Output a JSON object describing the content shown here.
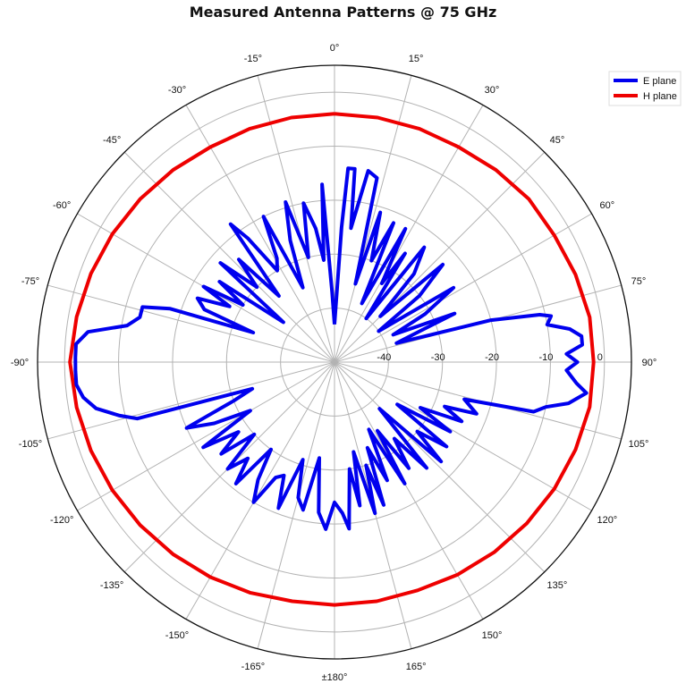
{
  "chart_data": {
    "type": "polar-line",
    "title": "Measured Antenna Patterns @ 75 GHz",
    "radial_axis": {
      "range": [
        -50,
        5
      ],
      "ticks": [
        -40,
        -30,
        -20,
        -10,
        0
      ],
      "tick_labels": [
        "-40",
        "-30",
        "-20",
        "-10",
        "0"
      ],
      "label_angle_deg": 90,
      "grid_circles": [
        -40,
        -30,
        -20,
        -10,
        0
      ]
    },
    "angular_axis": {
      "direction": "clockwise",
      "zero": "top",
      "step_deg": 15,
      "tick_labels": [
        "0°",
        "15°",
        "30°",
        "45°",
        "60°",
        "75°",
        "90°",
        "105°",
        "120°",
        "135°",
        "150°",
        "165°",
        "±180°",
        "-165°",
        "-150°",
        "-135°",
        "-120°",
        "-105°",
        "-90°",
        "-75°",
        "-60°",
        "-45°",
        "-30°",
        "-15°"
      ]
    },
    "grid": true,
    "legend": {
      "position": "top-right",
      "entries": [
        "E plane",
        "H plane"
      ]
    },
    "series": [
      {
        "name": "E plane",
        "color": "#0000ee",
        "points": [
          [
            0,
            -43
          ],
          [
            3,
            -25
          ],
          [
            4,
            -14
          ],
          [
            6,
            -14
          ],
          [
            7,
            -25
          ],
          [
            10,
            -14
          ],
          [
            13,
            -15
          ],
          [
            15,
            -35
          ],
          [
            17,
            -21
          ],
          [
            20,
            -30
          ],
          [
            23,
            -22
          ],
          [
            25,
            -38
          ],
          [
            28,
            -22
          ],
          [
            31,
            -33
          ],
          [
            33,
            -26
          ],
          [
            36,
            -40
          ],
          [
            38,
            -23
          ],
          [
            42,
            -28
          ],
          [
            45,
            -38
          ],
          [
            48,
            -23
          ],
          [
            52,
            -30
          ],
          [
            55,
            -40
          ],
          [
            58,
            -24
          ],
          [
            62,
            -31
          ],
          [
            65,
            -38
          ],
          [
            68,
            -26
          ],
          [
            70,
            -33
          ],
          [
            73,
            -38
          ],
          [
            75,
            -20
          ],
          [
            77,
            -11
          ],
          [
            78,
            -9
          ],
          [
            80,
            -10
          ],
          [
            82,
            -6
          ],
          [
            84,
            -4
          ],
          [
            86,
            -4
          ],
          [
            88,
            -7
          ],
          [
            90,
            -5
          ],
          [
            92,
            -7
          ],
          [
            95,
            -5
          ],
          [
            97,
            -3
          ],
          [
            100,
            -6
          ],
          [
            102,
            -10
          ],
          [
            104,
            -12
          ],
          [
            106,
            -25
          ],
          [
            110,
            -22
          ],
          [
            112,
            -28
          ],
          [
            115,
            -24
          ],
          [
            118,
            -32
          ],
          [
            121,
            -25
          ],
          [
            124,
            -36
          ],
          [
            127,
            -24
          ],
          [
            130,
            -30
          ],
          [
            133,
            -23
          ],
          [
            136,
            -38
          ],
          [
            139,
            -24
          ],
          [
            142,
            -32
          ],
          [
            145,
            -26
          ],
          [
            148,
            -35
          ],
          [
            150,
            -24
          ],
          [
            153,
            -36
          ],
          [
            156,
            -26
          ],
          [
            159,
            -33
          ],
          [
            161,
            -22
          ],
          [
            163,
            -30
          ],
          [
            165,
            -21
          ],
          [
            168,
            -33
          ],
          [
            170,
            -23
          ],
          [
            172,
            -30
          ],
          [
            175,
            -19
          ],
          [
            177,
            -22
          ],
          [
            180,
            -24
          ],
          [
            -177,
            -19
          ],
          [
            -174,
            -22
          ],
          [
            -171,
            -32
          ],
          [
            -168,
            -22
          ],
          [
            -165,
            -24
          ],
          [
            -162,
            -31
          ],
          [
            -159,
            -21
          ],
          [
            -156,
            -27
          ],
          [
            -153,
            -26
          ],
          [
            -150,
            -20
          ],
          [
            -147,
            -24
          ],
          [
            -144,
            -30
          ],
          [
            -141,
            -21
          ],
          [
            -138,
            -26
          ],
          [
            -135,
            -22
          ],
          [
            -132,
            -30
          ],
          [
            -129,
            -23
          ],
          [
            -126,
            -28
          ],
          [
            -123,
            -21
          ],
          [
            -120,
            -32
          ],
          [
            -117,
            -25
          ],
          [
            -114,
            -20
          ],
          [
            -111,
            -30
          ],
          [
            -108,
            -34
          ],
          [
            -106,
            -12
          ],
          [
            -104,
            -9
          ],
          [
            -101,
            -5
          ],
          [
            -98,
            -3
          ],
          [
            -95,
            -2
          ],
          [
            -92,
            -2
          ],
          [
            -89,
            -2
          ],
          [
            -86,
            -2
          ],
          [
            -83,
            -4
          ],
          [
            -80,
            -11
          ],
          [
            -77,
            -13
          ],
          [
            -74,
            -13
          ],
          [
            -72,
            -18
          ],
          [
            -70,
            -34
          ],
          [
            -68,
            -24
          ],
          [
            -65,
            -22
          ],
          [
            -62,
            -28
          ],
          [
            -60,
            -22
          ],
          [
            -58,
            -30
          ],
          [
            -55,
            -24
          ],
          [
            -52,
            -38
          ],
          [
            -49,
            -22
          ],
          [
            -46,
            -30
          ],
          [
            -43,
            -24
          ],
          [
            -40,
            -34
          ],
          [
            -37,
            -18
          ],
          [
            -35,
            -22
          ],
          [
            -32,
            -30
          ],
          [
            -29,
            -28
          ],
          [
            -26,
            -20
          ],
          [
            -23,
            -35
          ],
          [
            -20,
            -26
          ],
          [
            -17,
            -19
          ],
          [
            -14,
            -30
          ],
          [
            -11,
            -20
          ],
          [
            -8,
            -25
          ],
          [
            -6,
            -31
          ],
          [
            -4,
            -17
          ],
          [
            -2,
            -37
          ],
          [
            0,
            -43
          ]
        ]
      },
      {
        "name": "H plane",
        "color": "#ee0000",
        "points": [
          [
            0,
            -4
          ],
          [
            10,
            -4
          ],
          [
            20,
            -4
          ],
          [
            30,
            -4
          ],
          [
            40,
            -3.5
          ],
          [
            50,
            -3
          ],
          [
            60,
            -3
          ],
          [
            70,
            -2.5
          ],
          [
            80,
            -2
          ],
          [
            90,
            -2
          ],
          [
            100,
            -2
          ],
          [
            110,
            -2.5
          ],
          [
            120,
            -3
          ],
          [
            130,
            -3.5
          ],
          [
            140,
            -4
          ],
          [
            150,
            -4.5
          ],
          [
            160,
            -5
          ],
          [
            170,
            -5
          ],
          [
            180,
            -5
          ],
          [
            -170,
            -5
          ],
          [
            -160,
            -4.5
          ],
          [
            -150,
            -4
          ],
          [
            -140,
            -3.5
          ],
          [
            -130,
            -3
          ],
          [
            -120,
            -2.5
          ],
          [
            -110,
            -2
          ],
          [
            -100,
            -1.5
          ],
          [
            -90,
            -1
          ],
          [
            -80,
            -1.5
          ],
          [
            -70,
            -2
          ],
          [
            -60,
            -2.5
          ],
          [
            -50,
            -3
          ],
          [
            -40,
            -3.5
          ],
          [
            -30,
            -4
          ],
          [
            -20,
            -4
          ],
          [
            -10,
            -4
          ],
          [
            0,
            -4
          ]
        ]
      }
    ]
  }
}
